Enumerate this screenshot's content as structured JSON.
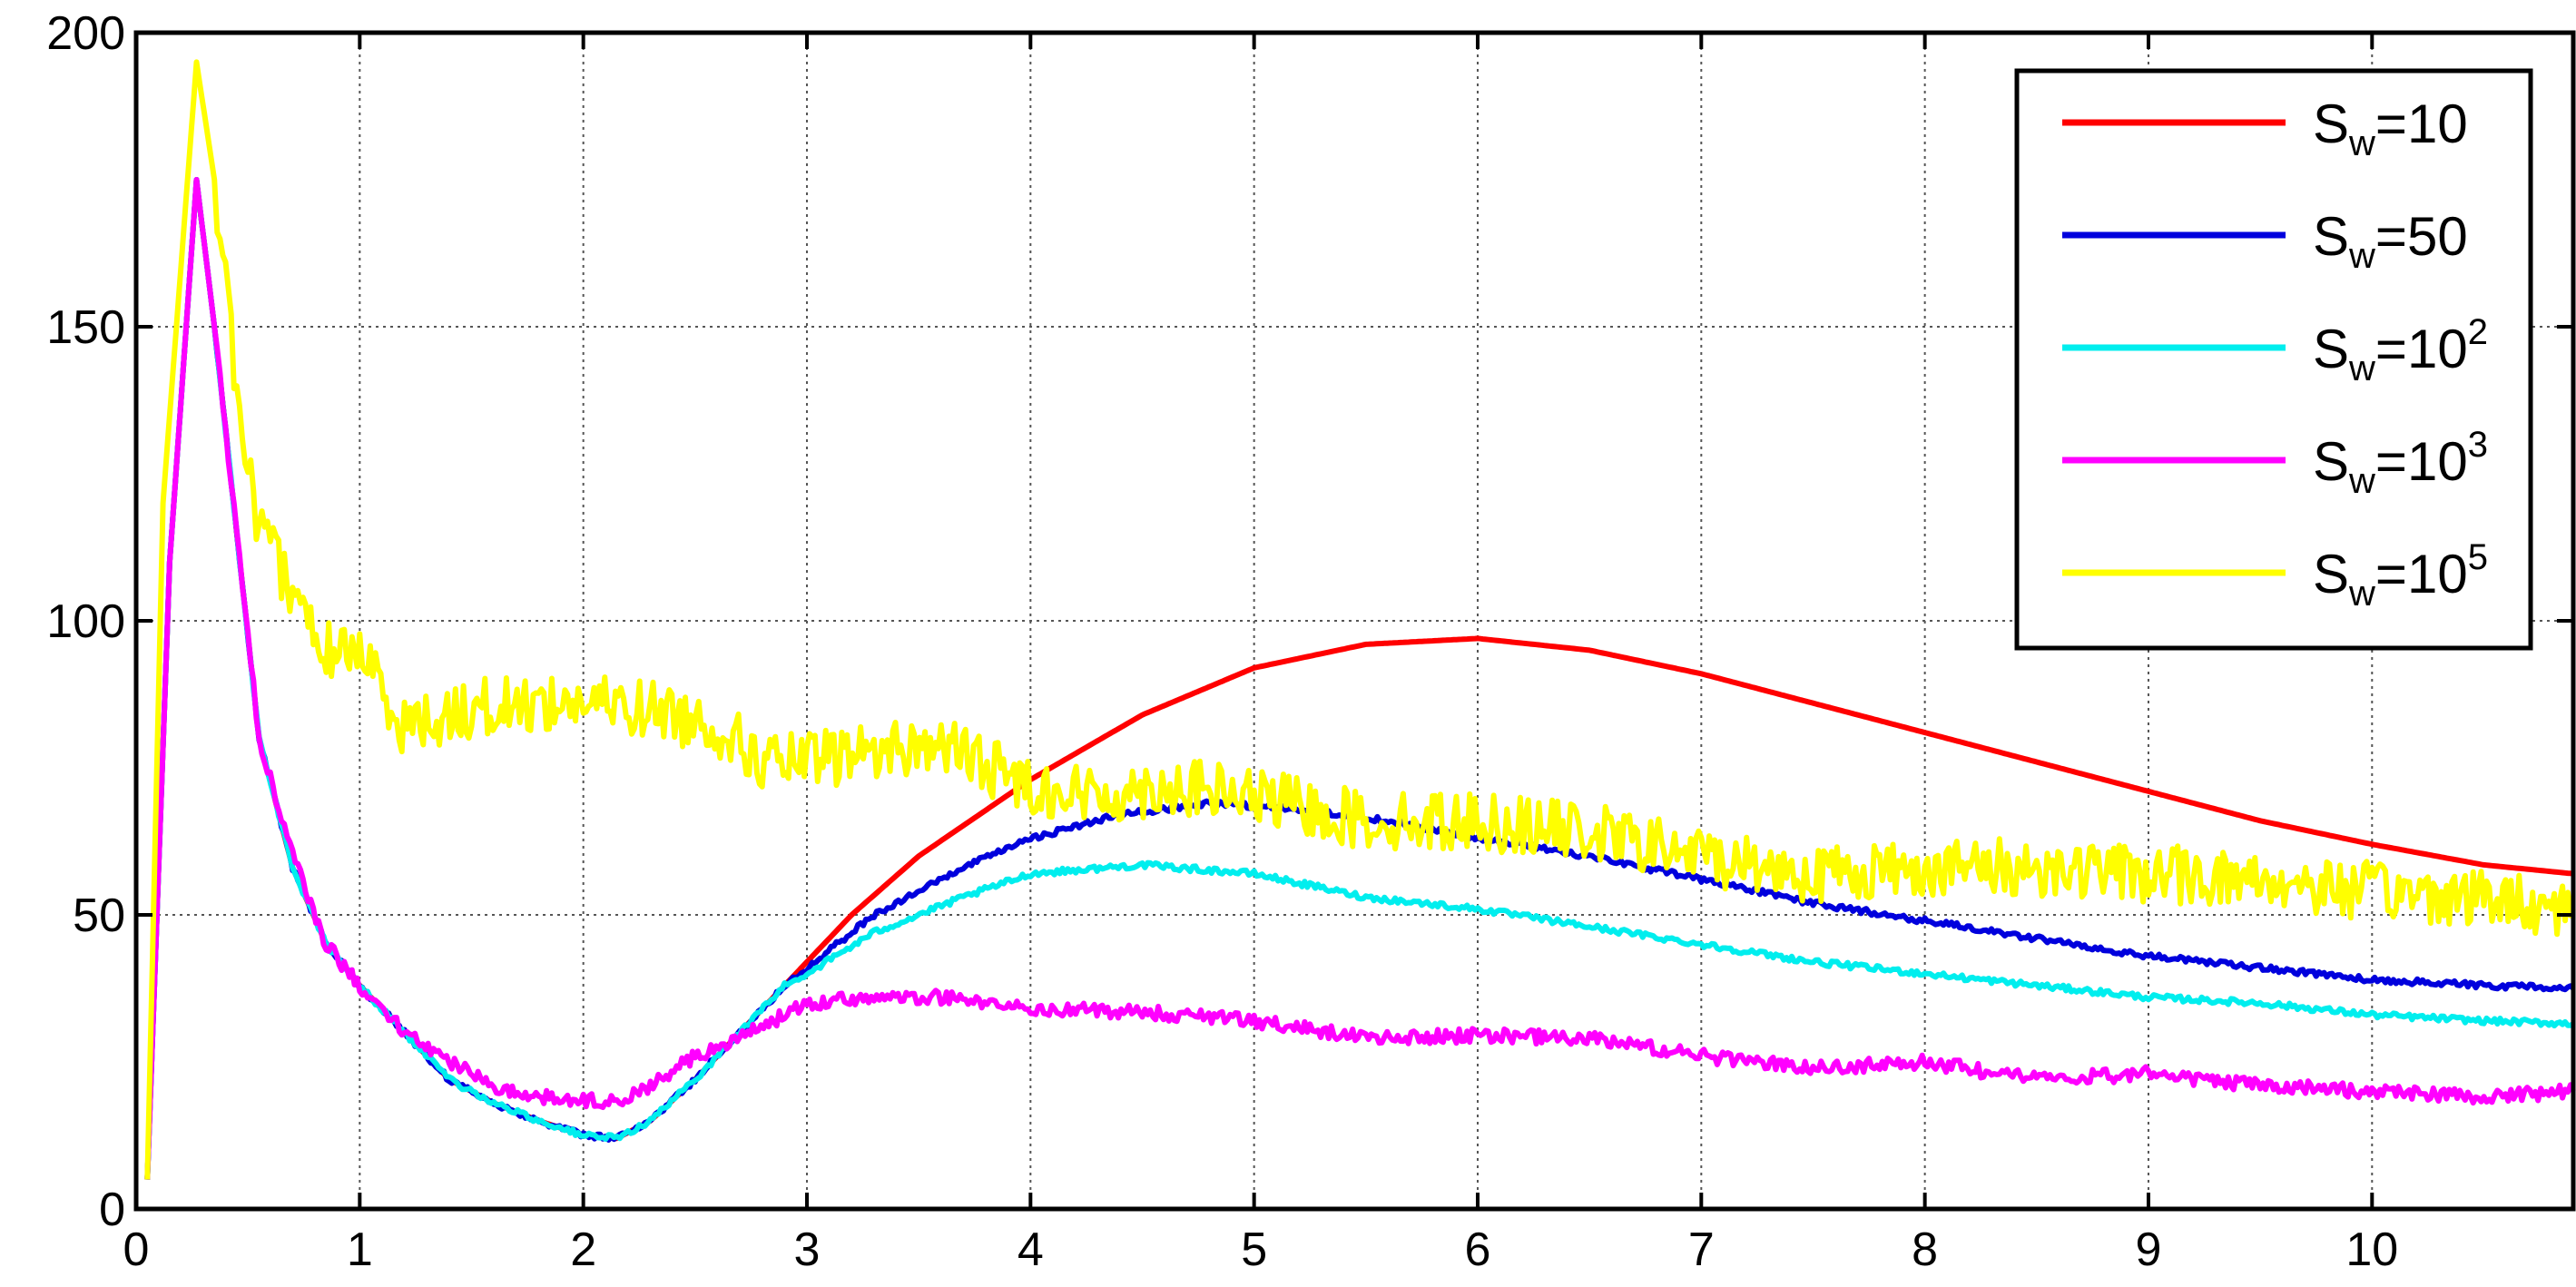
{
  "chart_data": {
    "type": "line",
    "title": "",
    "xlabel": "",
    "ylabel": "",
    "xlim": [
      0,
      10.9
    ],
    "ylim": [
      0,
      200
    ],
    "x_ticks": [
      0,
      1,
      2,
      3,
      4,
      5,
      6,
      7,
      8,
      9,
      10
    ],
    "y_ticks": [
      0,
      50,
      100,
      150,
      200
    ],
    "grid": true,
    "legend_position": "top-right",
    "series": [
      {
        "label_base": "S",
        "label_sub": "w",
        "label_rest": "=10",
        "label_sup": "",
        "color": "#ff0000",
        "noise": 0,
        "points": [
          [
            0.05,
            5
          ],
          [
            0.15,
            110
          ],
          [
            0.27,
            175
          ],
          [
            0.35,
            150
          ],
          [
            0.45,
            115
          ],
          [
            0.55,
            80
          ],
          [
            0.7,
            58
          ],
          [
            0.85,
            45
          ],
          [
            1.0,
            38
          ],
          [
            1.2,
            30
          ],
          [
            1.4,
            22
          ],
          [
            1.6,
            18
          ],
          [
            1.8,
            15
          ],
          [
            2.0,
            12.5
          ],
          [
            2.15,
            12
          ],
          [
            2.3,
            15
          ],
          [
            2.5,
            22
          ],
          [
            2.7,
            30
          ],
          [
            2.9,
            38
          ],
          [
            3.0,
            42
          ],
          [
            3.2,
            50
          ],
          [
            3.5,
            60
          ],
          [
            4.0,
            73
          ],
          [
            4.5,
            84
          ],
          [
            5.0,
            92
          ],
          [
            5.5,
            96
          ],
          [
            6.0,
            97
          ],
          [
            6.5,
            95
          ],
          [
            7.0,
            91
          ],
          [
            7.5,
            86
          ],
          [
            8.0,
            81
          ],
          [
            8.5,
            76
          ],
          [
            9.0,
            71
          ],
          [
            9.5,
            66
          ],
          [
            10.0,
            62
          ],
          [
            10.5,
            58.5
          ],
          [
            10.9,
            57
          ]
        ]
      },
      {
        "label_base": "S",
        "label_sub": "w",
        "label_rest": "=50",
        "label_sup": "",
        "color": "#0000dd",
        "noise": 0.5,
        "points": [
          [
            0.05,
            5
          ],
          [
            0.15,
            110
          ],
          [
            0.27,
            175
          ],
          [
            0.35,
            150
          ],
          [
            0.45,
            115
          ],
          [
            0.55,
            80
          ],
          [
            0.7,
            58
          ],
          [
            0.85,
            45
          ],
          [
            1.0,
            38
          ],
          [
            1.2,
            30
          ],
          [
            1.4,
            22
          ],
          [
            1.6,
            18
          ],
          [
            1.8,
            15
          ],
          [
            2.0,
            12.5
          ],
          [
            2.15,
            12
          ],
          [
            2.3,
            15
          ],
          [
            2.5,
            22
          ],
          [
            2.7,
            30
          ],
          [
            2.9,
            38
          ],
          [
            3.0,
            41
          ],
          [
            3.3,
            50
          ],
          [
            3.7,
            58
          ],
          [
            4.0,
            63
          ],
          [
            4.4,
            67
          ],
          [
            4.8,
            69
          ],
          [
            5.2,
            68
          ],
          [
            5.6,
            66
          ],
          [
            6.0,
            63
          ],
          [
            6.5,
            60
          ],
          [
            7.0,
            56
          ],
          [
            7.5,
            52
          ],
          [
            8.0,
            49
          ],
          [
            8.5,
            46
          ],
          [
            9.0,
            43
          ],
          [
            9.5,
            41
          ],
          [
            10.0,
            39
          ],
          [
            10.5,
            38
          ],
          [
            10.9,
            37.5
          ]
        ]
      },
      {
        "label_base": "S",
        "label_sub": "w",
        "label_rest": "=10",
        "label_sup": "2",
        "color": "#00eeee",
        "noise": 0.5,
        "points": [
          [
            0.05,
            5
          ],
          [
            0.15,
            110
          ],
          [
            0.27,
            175
          ],
          [
            0.35,
            150
          ],
          [
            0.45,
            115
          ],
          [
            0.55,
            80
          ],
          [
            0.7,
            58
          ],
          [
            0.85,
            45
          ],
          [
            1.0,
            38
          ],
          [
            1.2,
            30
          ],
          [
            1.4,
            22
          ],
          [
            1.6,
            18
          ],
          [
            1.8,
            15
          ],
          [
            2.0,
            12.5
          ],
          [
            2.15,
            12
          ],
          [
            2.3,
            15
          ],
          [
            2.5,
            22
          ],
          [
            2.7,
            30
          ],
          [
            2.9,
            38
          ],
          [
            3.0,
            40
          ],
          [
            3.3,
            47
          ],
          [
            3.7,
            53
          ],
          [
            4.0,
            57
          ],
          [
            4.5,
            58.5
          ],
          [
            5.0,
            57
          ],
          [
            5.5,
            53
          ],
          [
            6.0,
            51
          ],
          [
            6.5,
            48
          ],
          [
            7.0,
            45
          ],
          [
            7.5,
            42
          ],
          [
            8.0,
            40
          ],
          [
            8.5,
            38
          ],
          [
            9.0,
            36
          ],
          [
            9.5,
            35
          ],
          [
            10.0,
            33
          ],
          [
            10.5,
            32
          ],
          [
            10.9,
            31.5
          ]
        ]
      },
      {
        "label_base": "S",
        "label_sub": "w",
        "label_rest": "=10",
        "label_sup": "3",
        "color": "#ff00ff",
        "noise": 1.2,
        "points": [
          [
            0.05,
            5
          ],
          [
            0.15,
            110
          ],
          [
            0.27,
            175
          ],
          [
            0.35,
            150
          ],
          [
            0.45,
            115
          ],
          [
            0.55,
            80
          ],
          [
            0.7,
            60
          ],
          [
            0.85,
            45
          ],
          [
            1.0,
            38
          ],
          [
            1.2,
            30
          ],
          [
            1.4,
            25
          ],
          [
            1.6,
            21
          ],
          [
            1.8,
            19
          ],
          [
            2.0,
            18.5
          ],
          [
            2.15,
            18
          ],
          [
            2.3,
            21
          ],
          [
            2.5,
            26
          ],
          [
            2.7,
            29
          ],
          [
            2.9,
            33
          ],
          [
            3.0,
            35
          ],
          [
            3.3,
            36
          ],
          [
            3.6,
            36
          ],
          [
            4.0,
            34
          ],
          [
            4.5,
            33.5
          ],
          [
            5.0,
            32
          ],
          [
            5.5,
            29
          ],
          [
            6.0,
            29.5
          ],
          [
            6.5,
            29
          ],
          [
            7.0,
            26
          ],
          [
            7.5,
            24
          ],
          [
            8.0,
            25
          ],
          [
            8.5,
            22
          ],
          [
            9.0,
            23
          ],
          [
            9.5,
            21
          ],
          [
            10.0,
            20
          ],
          [
            10.5,
            19
          ],
          [
            10.9,
            20
          ]
        ]
      },
      {
        "label_base": "S",
        "label_sub": "w",
        "label_rest": "=10",
        "label_sup": "5",
        "color": "#ffff00",
        "noise": 5,
        "points": [
          [
            0.05,
            5
          ],
          [
            0.12,
            120
          ],
          [
            0.27,
            195
          ],
          [
            0.35,
            175
          ],
          [
            0.45,
            140
          ],
          [
            0.55,
            115
          ],
          [
            0.7,
            105
          ],
          [
            0.85,
            95
          ],
          [
            1.0,
            95
          ],
          [
            1.2,
            82
          ],
          [
            1.5,
            85
          ],
          [
            1.8,
            86
          ],
          [
            2.0,
            86
          ],
          [
            2.3,
            85
          ],
          [
            2.6,
            82
          ],
          [
            2.8,
            76
          ],
          [
            3.0,
            76
          ],
          [
            3.3,
            78
          ],
          [
            3.6,
            79
          ],
          [
            4.0,
            72
          ],
          [
            4.3,
            70
          ],
          [
            4.6,
            72
          ],
          [
            5.0,
            70
          ],
          [
            5.5,
            66
          ],
          [
            6.0,
            66
          ],
          [
            6.5,
            64
          ],
          [
            7.0,
            60
          ],
          [
            7.5,
            57
          ],
          [
            8.0,
            58
          ],
          [
            8.5,
            58
          ],
          [
            9.0,
            57
          ],
          [
            9.5,
            56
          ],
          [
            10.0,
            54
          ],
          [
            10.5,
            53
          ],
          [
            10.9,
            51
          ]
        ]
      }
    ]
  }
}
